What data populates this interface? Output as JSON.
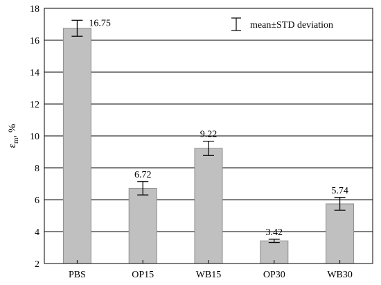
{
  "chart_data": {
    "type": "bar",
    "categories": [
      "PBS",
      "OP15",
      "WB15",
      "OP30",
      "WB30"
    ],
    "values": [
      16.75,
      6.72,
      9.22,
      3.42,
      5.74
    ],
    "errors": [
      0.5,
      0.42,
      0.45,
      0.1,
      0.4
    ],
    "value_labels": [
      "16.75",
      "6.72",
      "9.22",
      "3.42",
      "5.74"
    ],
    "ylabel_main": "ε",
    "ylabel_sub": "m",
    "ylabel_suffix": ", %",
    "ylim": [
      2,
      18
    ],
    "yticks": [
      2,
      4,
      6,
      8,
      10,
      12,
      14,
      16,
      18
    ],
    "ytick_labels": [
      "2",
      "4",
      "6",
      "8",
      "10",
      "12",
      "14",
      "16",
      "18"
    ],
    "grid": true,
    "legend": {
      "label": "mean±STD deviation",
      "placement": "top-right"
    },
    "colors": {
      "bar_fill": "#c0c0c0",
      "bar_stroke": "#8c8c8c",
      "grid": "#000000",
      "axis": "#000000"
    }
  }
}
